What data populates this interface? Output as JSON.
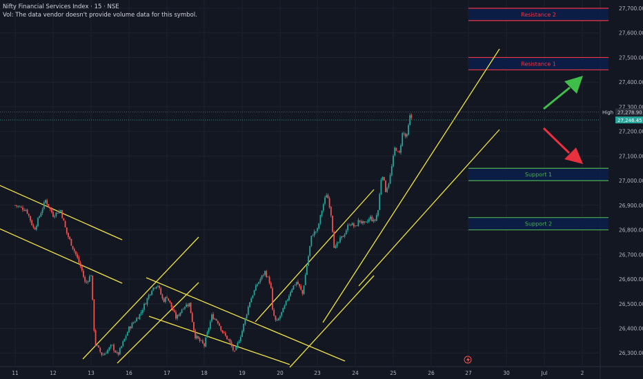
{
  "header": {
    "symbol_title": "Nifty Financial Services Index · 15 · NSE",
    "volume_note": "Vol: The data vendor doesn't provide volume data for this symbol."
  },
  "colors": {
    "background": "#131722",
    "grid": "#1e222d",
    "up": "#26a69a",
    "down": "#ef5350",
    "channel": "#f5e642",
    "resistance": "#f23645",
    "support": "#4caf50",
    "zone_fill": "#0b1f4a",
    "axis_text": "#b2b5be",
    "arrow_up": "#3fbf4a",
    "arrow_down": "#e8303f"
  },
  "y_axis": {
    "ticks": [
      "27,700.00",
      "27,600.00",
      "27,500.00",
      "27,400.00",
      "27,300.00",
      "27,200.00",
      "27,100.00",
      "27,000.00",
      "26,900.00",
      "26,800.00",
      "26,700.00",
      "26,600.00",
      "26,500.00",
      "26,400.00",
      "26,300.00"
    ],
    "high_label": "High",
    "high_value": "27,278.90",
    "last_value": "27,246.45"
  },
  "x_axis": {
    "ticks": [
      "11",
      "12",
      "13",
      "16",
      "17",
      "18",
      "19",
      "20",
      "23",
      "24",
      "25",
      "26",
      "27",
      "30",
      "Jul",
      "2"
    ]
  },
  "zones": [
    {
      "label": "Resistance 2",
      "top": 27700,
      "bottom": 27650,
      "kind": "resistance"
    },
    {
      "label": "Resistance 1",
      "top": 27500,
      "bottom": 27450,
      "kind": "resistance"
    },
    {
      "label": "Support 1",
      "top": 27050,
      "bottom": 27000,
      "kind": "support"
    },
    {
      "label": "Support 2",
      "top": 26850,
      "bottom": 26800,
      "kind": "support"
    }
  ],
  "chart_data": {
    "type": "candlestick",
    "symbol": "Nifty Financial Services Index",
    "interval": "15",
    "exchange": "NSE",
    "x": [
      "11",
      "12",
      "13",
      "16",
      "17",
      "18",
      "19",
      "20",
      "23",
      "24",
      "25",
      "26",
      "27",
      "30",
      "Jul",
      "2"
    ],
    "ylim": [
      26260,
      27730
    ],
    "grid": true,
    "path": [
      [
        0.0,
        26900
      ],
      [
        0.3,
        26880
      ],
      [
        0.5,
        26800
      ],
      [
        0.8,
        26920
      ],
      [
        1.0,
        26860
      ],
      [
        1.2,
        26880
      ],
      [
        1.35,
        26790
      ],
      [
        1.6,
        26700
      ],
      [
        1.75,
        26640
      ],
      [
        1.85,
        26580
      ],
      [
        2.0,
        26620
      ],
      [
        2.1,
        26340
      ],
      [
        2.3,
        26290
      ],
      [
        2.55,
        26330
      ],
      [
        2.7,
        26290
      ],
      [
        3.0,
        26400
      ],
      [
        3.3,
        26460
      ],
      [
        3.6,
        26560
      ],
      [
        3.75,
        26580
      ],
      [
        3.9,
        26510
      ],
      [
        4.0,
        26530
      ],
      [
        4.25,
        26440
      ],
      [
        4.45,
        26490
      ],
      [
        4.6,
        26500
      ],
      [
        4.75,
        26370
      ],
      [
        5.0,
        26330
      ],
      [
        5.2,
        26450
      ],
      [
        5.35,
        26430
      ],
      [
        5.5,
        26380
      ],
      [
        5.65,
        26350
      ],
      [
        5.8,
        26300
      ],
      [
        6.0,
        26390
      ],
      [
        6.2,
        26510
      ],
      [
        6.4,
        26580
      ],
      [
        6.6,
        26630
      ],
      [
        6.75,
        26580
      ],
      [
        6.8,
        26470
      ],
      [
        6.9,
        26420
      ],
      [
        7.1,
        26480
      ],
      [
        7.3,
        26560
      ],
      [
        7.45,
        26590
      ],
      [
        7.6,
        26540
      ],
      [
        7.85,
        26780
      ],
      [
        8.0,
        26800
      ],
      [
        8.15,
        26900
      ],
      [
        8.25,
        26950
      ],
      [
        8.35,
        26880
      ],
      [
        8.45,
        26720
      ],
      [
        8.6,
        26760
      ],
      [
        8.7,
        26780
      ],
      [
        8.85,
        26830
      ],
      [
        9.0,
        26810
      ],
      [
        9.1,
        26840
      ],
      [
        9.25,
        26820
      ],
      [
        9.4,
        26850
      ],
      [
        9.5,
        26830
      ],
      [
        9.6,
        26880
      ],
      [
        9.7,
        27040
      ],
      [
        9.8,
        26960
      ],
      [
        9.9,
        27000
      ],
      [
        10.05,
        27140
      ],
      [
        10.15,
        27100
      ],
      [
        10.25,
        27200
      ],
      [
        10.35,
        27170
      ],
      [
        10.45,
        27270
      ],
      [
        10.5,
        27246
      ]
    ]
  }
}
